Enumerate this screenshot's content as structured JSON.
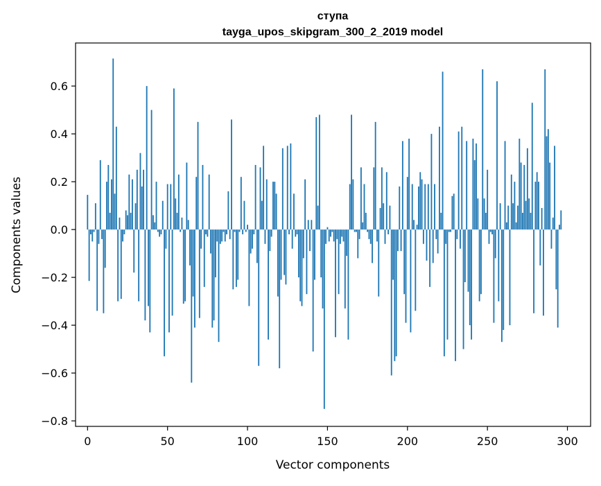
{
  "chart_data": {
    "type": "bar",
    "title": "ступа",
    "subtitle": "tayga_upos_skipgram_300_2_2019 model",
    "xlabel": "Vector components",
    "ylabel": "Components values",
    "xlim": [
      -7.5,
      314.5
    ],
    "ylim": [
      -0.823,
      0.78
    ],
    "xticks": [
      0,
      50,
      100,
      150,
      200,
      250,
      300
    ],
    "yticks": [
      -0.8,
      -0.6,
      -0.4,
      -0.2,
      0.0,
      0.2,
      0.4,
      0.6
    ],
    "xtick_labels": [
      "0",
      "50",
      "100",
      "150",
      "200",
      "250",
      "300"
    ],
    "ytick_labels": [
      "−0.8",
      "−0.6",
      "−0.4",
      "−0.2",
      "0.0",
      "0.2",
      "0.4",
      "0.6"
    ],
    "grid": false,
    "bar_color": "#1f77b4",
    "values": [
      0.145,
      -0.215,
      -0.02,
      -0.05,
      -0.01,
      0.11,
      -0.34,
      -0.06,
      0.29,
      -0.04,
      -0.35,
      -0.16,
      0.2,
      0.27,
      0.07,
      0.21,
      0.715,
      0.15,
      0.43,
      -0.3,
      0.05,
      -0.29,
      -0.05,
      -0.02,
      0.08,
      0.06,
      0.23,
      0.07,
      0.21,
      -0.18,
      0.11,
      0.25,
      -0.3,
      0.32,
      0.18,
      0.25,
      -0.38,
      0.6,
      -0.32,
      -0.43,
      0.5,
      0.06,
      0.03,
      0.2,
      -0.01,
      -0.03,
      -0.02,
      0.12,
      -0.53,
      -0.08,
      0.19,
      -0.43,
      0.19,
      -0.36,
      0.59,
      0.13,
      0.07,
      0.23,
      -0.01,
      0.05,
      -0.31,
      -0.3,
      0.28,
      0.04,
      -0.15,
      -0.64,
      -0.28,
      -0.41,
      0.22,
      0.45,
      -0.37,
      -0.08,
      0.27,
      -0.24,
      -0.02,
      -0.03,
      0.23,
      -0.1,
      -0.41,
      -0.38,
      -0.2,
      -0.05,
      -0.47,
      -0.06,
      -0.05,
      -0.01,
      -0.05,
      -0.02,
      0.16,
      -0.04,
      0.46,
      -0.25,
      -0.01,
      -0.24,
      -0.21,
      -0.01,
      0.22,
      -0.02,
      0.12,
      -0.01,
      0.02,
      -0.32,
      -0.1,
      -0.08,
      -0.02,
      0.27,
      -0.14,
      -0.57,
      0.26,
      0.12,
      0.35,
      -0.06,
      0.21,
      -0.46,
      -0.09,
      -0.03,
      0.2,
      0.2,
      0.15,
      -0.28,
      -0.58,
      -0.21,
      0.34,
      -0.19,
      -0.23,
      0.35,
      -0.02,
      0.36,
      -0.08,
      0.15,
      -0.03,
      -0.02,
      -0.2,
      -0.3,
      -0.32,
      -0.12,
      0.21,
      -0.27,
      0.04,
      -0.09,
      0.04,
      -0.51,
      -0.21,
      0.47,
      0.1,
      0.48,
      -0.2,
      -0.33,
      -0.75,
      -0.06,
      0.01,
      -0.05,
      -0.03,
      -0.01,
      -0.05,
      -0.45,
      -0.04,
      -0.27,
      -0.06,
      -0.03,
      -0.05,
      -0.33,
      -0.11,
      -0.46,
      0.19,
      0.48,
      0.21,
      -0.01,
      -0.01,
      -0.12,
      -0.04,
      0.26,
      0.03,
      0.19,
      0.07,
      -0.01,
      -0.04,
      -0.06,
      -0.14,
      0.26,
      0.45,
      -0.05,
      -0.28,
      0.09,
      0.26,
      0.11,
      -0.06,
      0.24,
      -0.02,
      0.1,
      -0.61,
      -0.21,
      -0.55,
      -0.53,
      -0.09,
      0.18,
      -0.09,
      0.37,
      -0.27,
      -0.39,
      0.22,
      0.38,
      -0.43,
      0.19,
      0.04,
      -0.34,
      0.02,
      0.18,
      0.24,
      0.21,
      -0.06,
      0.19,
      -0.13,
      0.19,
      -0.24,
      0.4,
      -0.14,
      0.19,
      -0.04,
      -0.1,
      0.43,
      0.07,
      0.66,
      -0.53,
      -0.06,
      -0.46,
      -0.01,
      -0.01,
      0.14,
      0.15,
      -0.55,
      -0.04,
      0.41,
      -0.08,
      0.43,
      -0.5,
      -0.22,
      0.37,
      -0.26,
      -0.4,
      -0.46,
      0.38,
      0.29,
      0.36,
      0.13,
      -0.3,
      -0.27,
      0.67,
      0.13,
      0.07,
      0.25,
      -0.06,
      -0.01,
      -0.02,
      -0.39,
      -0.12,
      0.62,
      -0.3,
      0.11,
      -0.47,
      -0.42,
      0.37,
      0.03,
      0.1,
      -0.4,
      0.23,
      0.11,
      0.2,
      0.03,
      0.1,
      0.38,
      0.28,
      0.07,
      0.27,
      0.12,
      0.34,
      0.13,
      0.07,
      0.53,
      -0.35,
      0.2,
      0.24,
      0.2,
      -0.15,
      0.09,
      -0.36,
      0.67,
      0.39,
      0.42,
      0.28,
      -0.08,
      0.05,
      0.35,
      -0.25,
      -0.41,
      0.02,
      0.08
    ]
  }
}
